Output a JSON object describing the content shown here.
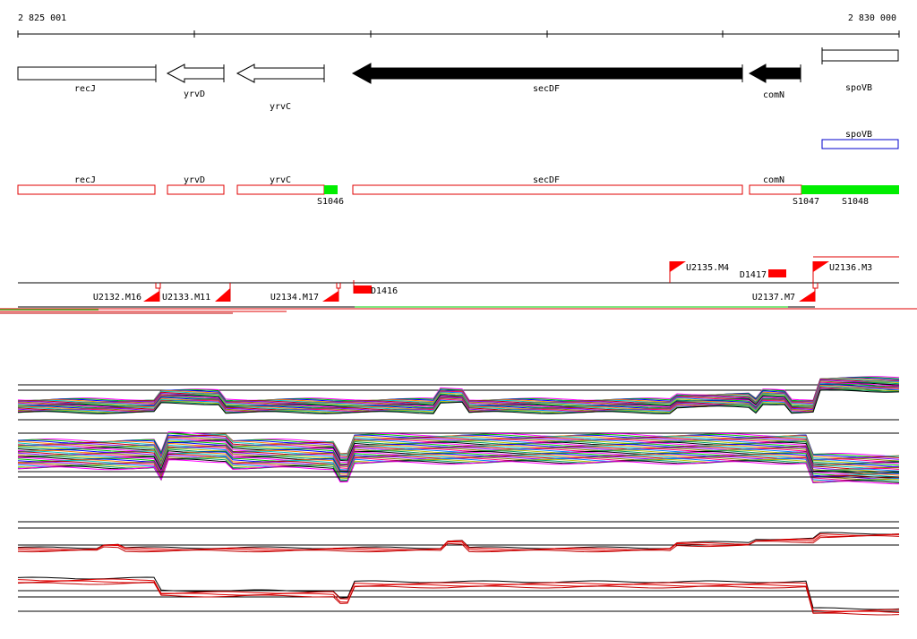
{
  "ruler": {
    "start_label": "2 825 001",
    "end_label": "2 830 000"
  },
  "genes": [
    {
      "name": "recJ"
    },
    {
      "name": "yrvD"
    },
    {
      "name": "yrvC"
    },
    {
      "name": "secDF"
    },
    {
      "name": "comN"
    },
    {
      "name": "spoVB"
    }
  ],
  "spoVB_annotation": {
    "name": "spoVB"
  },
  "transcripts": [
    {
      "name": "recJ"
    },
    {
      "name": "yrvD"
    },
    {
      "name": "yrvC"
    },
    {
      "name": "secDF"
    },
    {
      "name": "comN"
    }
  ],
  "segments": [
    {
      "name": "S1046"
    },
    {
      "name": "S1047"
    },
    {
      "name": "S1048"
    }
  ],
  "upshifts": [
    {
      "name": "U2132.M16"
    },
    {
      "name": "U2133.M11"
    },
    {
      "name": "U2134.M17"
    },
    {
      "name": "U2135.M4"
    },
    {
      "name": "U2136.M3"
    },
    {
      "name": "U2137.M7"
    }
  ],
  "downshifts": [
    {
      "name": "D1416"
    },
    {
      "name": "D1417"
    }
  ],
  "colors": {
    "gene_black": "#000000",
    "transcript_red": "#e00000",
    "segment_green": "#00ee00",
    "annotation_blue": "#0000cc",
    "marker_red": "#ff0000"
  }
}
